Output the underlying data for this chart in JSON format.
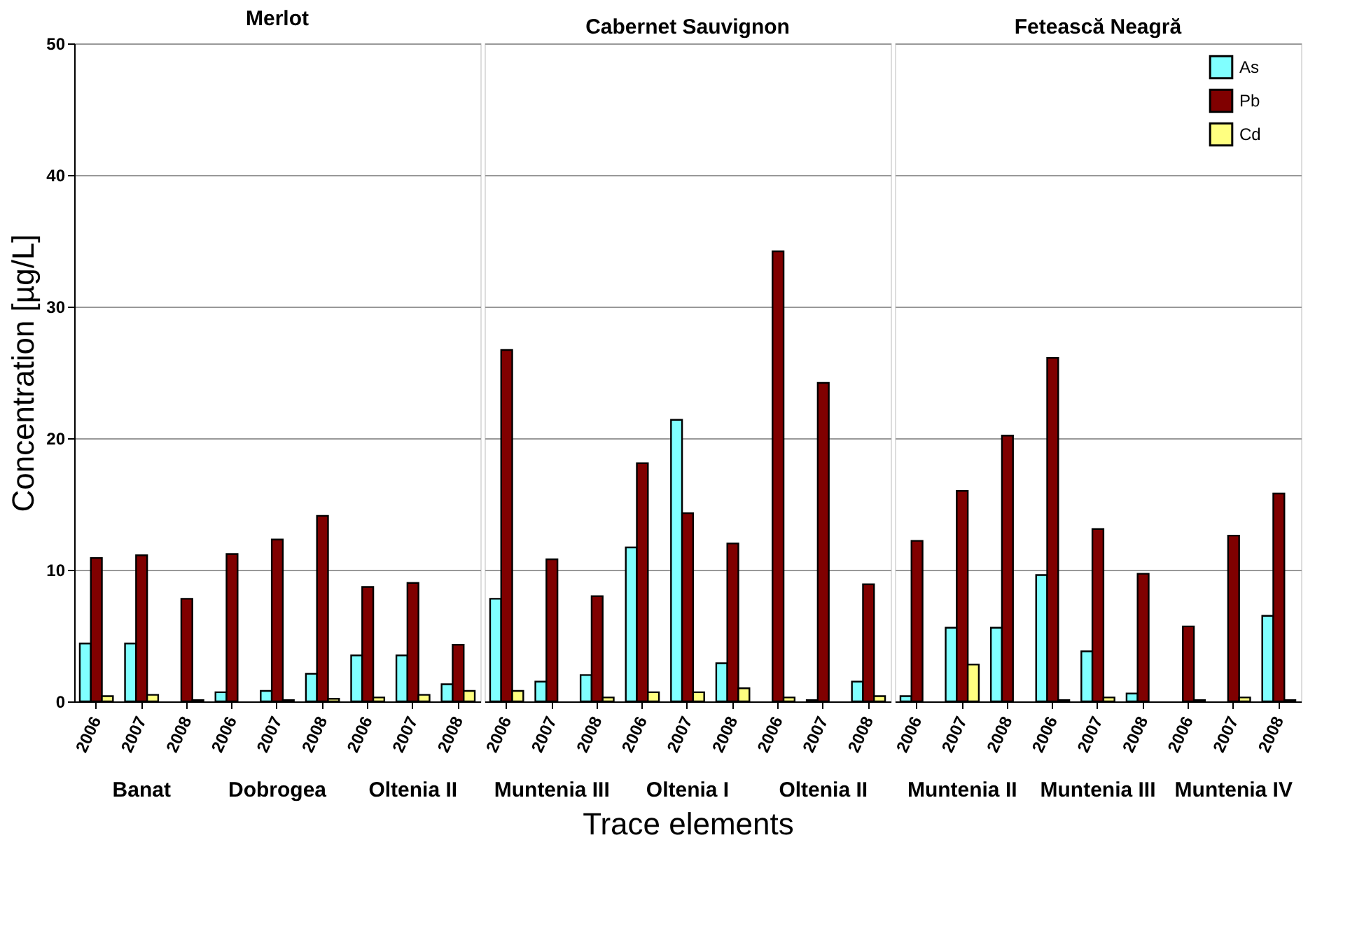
{
  "chart_data": [
    {
      "type": "bar",
      "title": "Merlot",
      "ylabel": "Concentration [µg/L]",
      "categories": [
        "2006",
        "2007",
        "2008",
        "2006",
        "2007",
        "2008",
        "2006",
        "2007",
        "2008"
      ],
      "annotations": [
        "Banat",
        "Dobrogea",
        "Oltenia II"
      ],
      "ylim": [
        0,
        50
      ],
      "yticks": [
        0,
        10,
        20,
        30,
        40,
        50
      ],
      "grid": "y",
      "legend": "top right",
      "series": [
        {
          "name": "As",
          "color": "#80ffff",
          "values": [
            4.4,
            4.4,
            0,
            0.7,
            0.8,
            2.1,
            3.5,
            3.5,
            1.3
          ]
        },
        {
          "name": "Pb",
          "color": "#800000",
          "values": [
            10.9,
            11.1,
            7.8,
            11.2,
            12.3,
            14.1,
            8.7,
            9.0,
            4.3
          ]
        },
        {
          "name": "Cd",
          "color": "#ffff80",
          "values": [
            0.4,
            0.5,
            0.1,
            0,
            0.1,
            0.2,
            0.3,
            0.5,
            0.8
          ]
        }
      ]
    },
    {
      "type": "bar",
      "title": "Cabernet Sauvignon",
      "xlabel": "Trace elements",
      "categories": [
        "2006",
        "2007",
        "2008",
        "2006",
        "2007",
        "2008",
        "2006",
        "2007",
        "2008"
      ],
      "annotations": [
        "Muntenia III",
        "Oltenia I",
        "Oltenia II"
      ],
      "ylim": [
        0,
        50
      ],
      "yticks": [
        0,
        10,
        20,
        30,
        40,
        50
      ],
      "grid": "y",
      "legend": "top right",
      "tick_labels": "x",
      "series": [
        {
          "name": "As",
          "color": "#80ffff",
          "values": [
            7.8,
            1.5,
            2.0,
            11.7,
            21.4,
            2.9,
            0,
            0.1,
            1.5
          ]
        },
        {
          "name": "Pb",
          "color": "#800000",
          "values": [
            26.7,
            10.8,
            8.0,
            18.1,
            14.3,
            12.0,
            34.2,
            24.2,
            8.9
          ]
        },
        {
          "name": "Cd",
          "color": "#ffff80",
          "values": [
            0.8,
            0,
            0.3,
            0.7,
            0.7,
            1.0,
            0.3,
            0,
            0.4
          ]
        }
      ]
    },
    {
      "type": "bar",
      "title": "Fetească Neagră",
      "categories": [
        "2006",
        "2007",
        "2008",
        "2006",
        "2007",
        "2008",
        "2006",
        "2007",
        "2008"
      ],
      "annotations": [
        "Muntenia II",
        "Muntenia III",
        "Muntenia IV"
      ],
      "ylim": [
        0,
        50
      ],
      "yticks": [
        0,
        10,
        20,
        30,
        40,
        50
      ],
      "grid": "y",
      "legend": "top right",
      "tick_labels": "x",
      "series": [
        {
          "name": "As",
          "color": "#80ffff",
          "values": [
            0.4,
            5.6,
            5.6,
            9.6,
            3.8,
            0.6,
            0,
            0,
            6.5
          ]
        },
        {
          "name": "Pb",
          "color": "#800000",
          "values": [
            12.2,
            16.0,
            20.2,
            26.1,
            13.1,
            9.7,
            5.7,
            12.6,
            15.8
          ]
        },
        {
          "name": "Cd",
          "color": "#ffff80",
          "values": [
            0,
            2.8,
            0,
            0.1,
            0.3,
            0,
            0.1,
            0.3,
            0.1
          ]
        }
      ]
    }
  ]
}
